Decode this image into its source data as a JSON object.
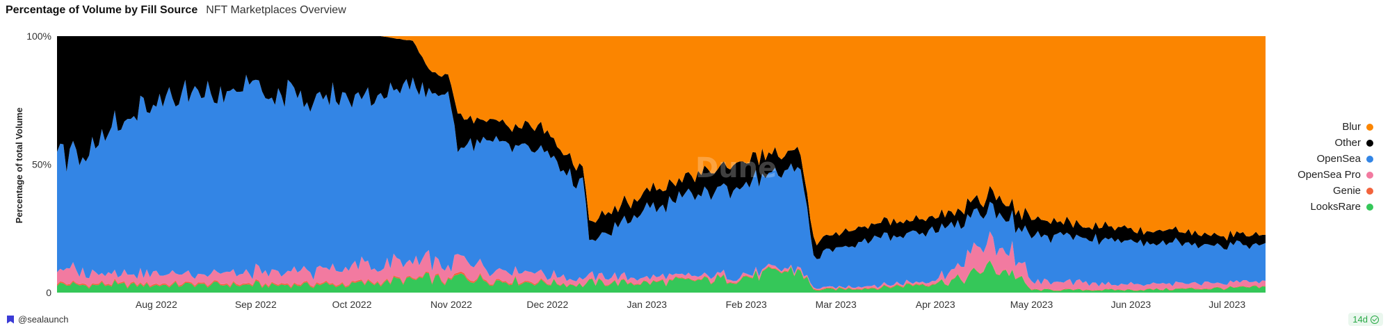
{
  "header": {
    "title": "Percentage of Volume by Fill Source",
    "subtitle": "NFT Marketplaces Overview"
  },
  "footer": {
    "author": "@sealaunch",
    "freshness": "14d"
  },
  "watermark": "Dune",
  "chart_data": {
    "type": "area",
    "stacked": true,
    "normalized": true,
    "ylabel": "Percentage of total Volume",
    "yticks": [
      "0",
      "50%",
      "100%"
    ],
    "ylim": [
      0,
      100
    ],
    "x_range": [
      "2022-07-01",
      "2023-07-13"
    ],
    "xticks": [
      {
        "label": "Aug 2022",
        "date": "2022-08-01"
      },
      {
        "label": "Sep 2022",
        "date": "2022-09-01"
      },
      {
        "label": "Oct 2022",
        "date": "2022-10-01"
      },
      {
        "label": "Nov 2022",
        "date": "2022-11-01"
      },
      {
        "label": "Dec 2022",
        "date": "2022-12-01"
      },
      {
        "label": "Jan 2023",
        "date": "2023-01-01"
      },
      {
        "label": "Feb 2023",
        "date": "2023-02-01"
      },
      {
        "label": "Mar 2023",
        "date": "2023-03-01"
      },
      {
        "label": "Apr 2023",
        "date": "2023-04-01"
      },
      {
        "label": "May 2023",
        "date": "2023-05-01"
      },
      {
        "label": "Jun 2023",
        "date": "2023-06-01"
      },
      {
        "label": "Jul 2023",
        "date": "2023-07-01"
      }
    ],
    "legend_position": "right",
    "legend": [
      "Blur",
      "Other",
      "OpenSea",
      "OpenSea Pro",
      "Genie",
      "LooksRare"
    ],
    "series": [
      {
        "name": "LooksRare",
        "color": "#35c759",
        "points": [
          [
            "2022-07-01",
            3
          ],
          [
            "2022-08-01",
            3
          ],
          [
            "2022-09-01",
            3
          ],
          [
            "2022-10-01",
            3
          ],
          [
            "2022-10-25",
            6
          ],
          [
            "2022-11-01",
            4
          ],
          [
            "2022-11-15",
            5
          ],
          [
            "2022-12-01",
            4
          ],
          [
            "2023-01-01",
            4
          ],
          [
            "2023-01-20",
            5
          ],
          [
            "2023-02-01",
            6
          ],
          [
            "2023-02-18",
            9
          ],
          [
            "2023-02-22",
            1
          ],
          [
            "2023-03-15",
            2
          ],
          [
            "2023-04-10",
            5
          ],
          [
            "2023-04-18",
            10
          ],
          [
            "2023-04-25",
            8
          ],
          [
            "2023-05-01",
            1
          ],
          [
            "2023-06-01",
            1
          ],
          [
            "2023-07-13",
            2
          ]
        ]
      },
      {
        "name": "Genie",
        "color": "#f2633c",
        "points": [
          [
            "2022-07-01",
            0.5
          ],
          [
            "2022-11-30",
            0.5
          ],
          [
            "2022-12-01",
            0.3
          ],
          [
            "2023-03-31",
            0.3
          ],
          [
            "2023-04-01",
            0.2
          ],
          [
            "2023-07-13",
            0.2
          ]
        ]
      },
      {
        "name": "OpenSea Pro",
        "color": "#f27aa0",
        "points": [
          [
            "2022-07-01",
            5
          ],
          [
            "2022-08-01",
            4
          ],
          [
            "2022-09-01",
            4
          ],
          [
            "2022-10-01",
            6
          ],
          [
            "2022-10-25",
            8
          ],
          [
            "2022-11-01",
            4
          ],
          [
            "2022-12-01",
            3
          ],
          [
            "2023-01-01",
            2
          ],
          [
            "2023-02-01",
            1
          ],
          [
            "2023-02-22",
            0.5
          ],
          [
            "2023-04-01",
            1
          ],
          [
            "2023-04-15",
            10
          ],
          [
            "2023-04-28",
            8
          ],
          [
            "2023-05-01",
            3
          ],
          [
            "2023-06-01",
            2
          ],
          [
            "2023-07-13",
            2
          ]
        ]
      },
      {
        "name": "OpenSea",
        "color": "#3385e5",
        "points": [
          [
            "2022-07-01",
            42
          ],
          [
            "2022-08-01",
            68
          ],
          [
            "2022-09-01",
            72
          ],
          [
            "2022-10-01",
            65
          ],
          [
            "2022-10-20",
            72
          ],
          [
            "2022-10-31",
            68
          ],
          [
            "2022-11-03",
            28
          ],
          [
            "2022-11-15",
            53
          ],
          [
            "2022-12-01",
            48
          ],
          [
            "2022-12-12",
            50
          ],
          [
            "2022-12-14",
            13
          ],
          [
            "2022-12-25",
            22
          ],
          [
            "2023-01-01",
            28
          ],
          [
            "2023-01-15",
            32
          ],
          [
            "2023-02-01",
            36
          ],
          [
            "2023-02-18",
            38
          ],
          [
            "2023-02-22",
            12
          ],
          [
            "2023-03-01",
            16
          ],
          [
            "2023-03-15",
            19
          ],
          [
            "2023-04-01",
            20
          ],
          [
            "2023-04-12",
            13
          ],
          [
            "2023-04-28",
            13
          ],
          [
            "2023-05-01",
            18
          ],
          [
            "2023-06-01",
            17
          ],
          [
            "2023-07-13",
            14
          ]
        ]
      },
      {
        "name": "Other",
        "color": "#000000",
        "points": [
          [
            "2022-07-01",
            50
          ],
          [
            "2022-08-01",
            23
          ],
          [
            "2022-09-01",
            21
          ],
          [
            "2022-10-01",
            25
          ],
          [
            "2022-10-20",
            20
          ],
          [
            "2022-10-25",
            10
          ],
          [
            "2022-11-01",
            8
          ],
          [
            "2022-12-01",
            8
          ],
          [
            "2022-12-14",
            8
          ],
          [
            "2023-01-01",
            7
          ],
          [
            "2023-02-01",
            9
          ],
          [
            "2023-02-22",
            6
          ],
          [
            "2023-04-01",
            5
          ],
          [
            "2023-05-01",
            6
          ],
          [
            "2023-06-01",
            5
          ],
          [
            "2023-07-13",
            4
          ]
        ]
      },
      {
        "name": "Blur",
        "color": "#fb8500",
        "points": [
          [
            "2022-07-01",
            0
          ],
          [
            "2022-10-10",
            0
          ],
          [
            "2022-10-20",
            2
          ],
          [
            "2022-10-25",
            14
          ],
          [
            "2022-11-01",
            17
          ],
          [
            "2022-11-15",
            35
          ],
          [
            "2022-12-01",
            37
          ],
          [
            "2022-12-14",
            76
          ],
          [
            "2023-01-01",
            64
          ],
          [
            "2023-02-01",
            48
          ],
          [
            "2023-02-18",
            45
          ],
          [
            "2023-02-22",
            81
          ],
          [
            "2023-04-01",
            70
          ],
          [
            "2023-04-15",
            60
          ],
          [
            "2023-05-01",
            72
          ],
          [
            "2023-06-01",
            75
          ],
          [
            "2023-07-13",
            78
          ]
        ]
      }
    ]
  }
}
